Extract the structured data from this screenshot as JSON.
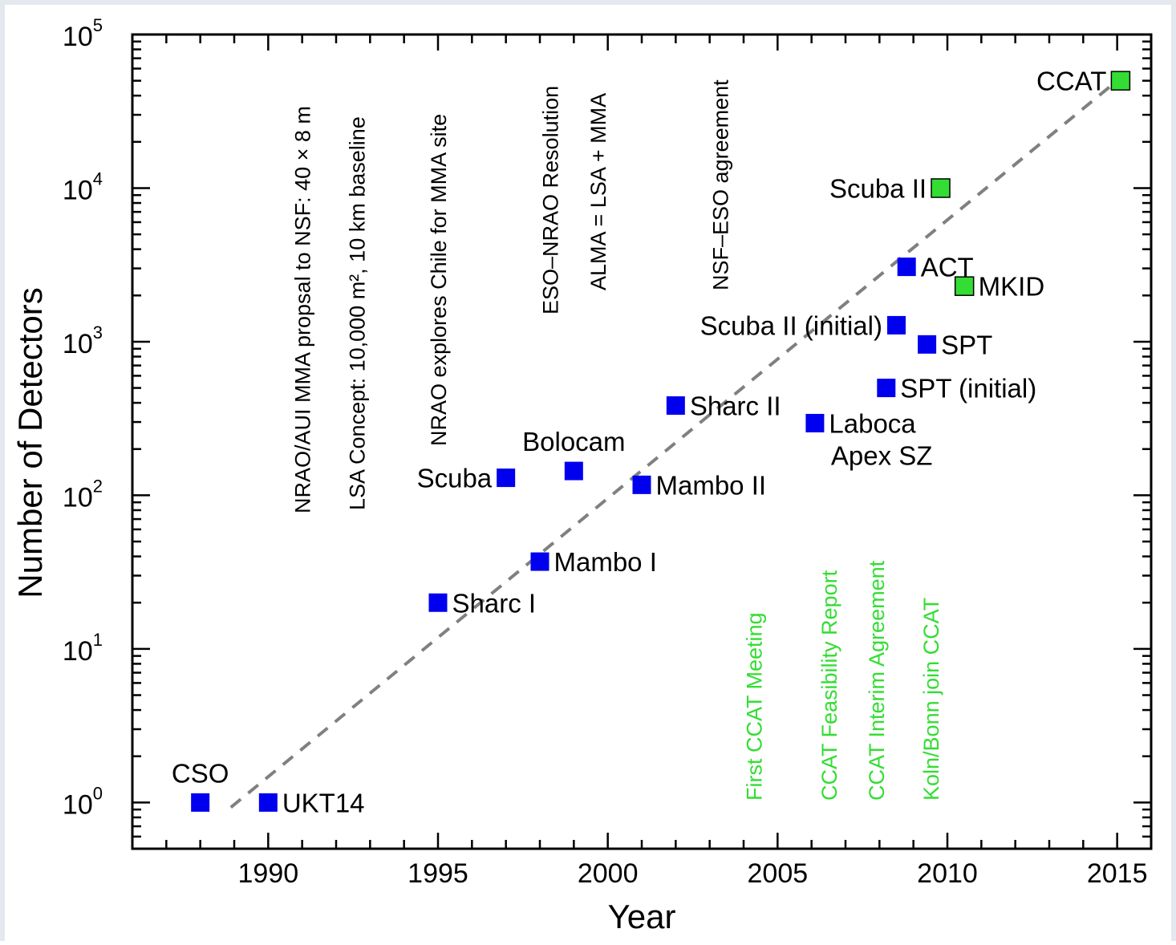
{
  "colors": {
    "existing": "#0000ee",
    "planned": "#33dd33",
    "trend": "#808080",
    "axis": "#000000"
  },
  "chart_data": {
    "type": "scatter",
    "title": "",
    "xlabel": "Year",
    "ylabel": "Number of Detectors",
    "xlim": [
      1986,
      2016
    ],
    "ylim": [
      0.5,
      100000
    ],
    "yscale": "log",
    "xticks": [
      "1990",
      "1995",
      "2000",
      "2005",
      "2010",
      "2015"
    ],
    "ytick_base": "10",
    "ytick_exponents": [
      "0",
      "1",
      "2",
      "3",
      "4",
      "5"
    ],
    "grid": false,
    "legend": "none",
    "points": [
      {
        "label": "CSO",
        "x": 1988,
        "y": 1,
        "status": "existing",
        "label_pos": "above"
      },
      {
        "label": "UKT14",
        "x": 1990,
        "y": 1,
        "status": "existing",
        "label_pos": "right"
      },
      {
        "label": "Sharc I",
        "x": 1995,
        "y": 20,
        "status": "existing",
        "label_pos": "right"
      },
      {
        "label": "Scuba",
        "x": 1997,
        "y": 130,
        "status": "existing",
        "label_pos": "left"
      },
      {
        "label": "Mambo I",
        "x": 1998,
        "y": 37,
        "status": "existing",
        "label_pos": "right"
      },
      {
        "label": "Bolocam",
        "x": 1999,
        "y": 144,
        "status": "existing",
        "label_pos": "above"
      },
      {
        "label": "Mambo II",
        "x": 2001,
        "y": 117,
        "status": "existing",
        "label_pos": "right"
      },
      {
        "label": "Sharc II",
        "x": 2002,
        "y": 384,
        "status": "existing",
        "label_pos": "right"
      },
      {
        "label": "Laboca",
        "x": 2006.1,
        "y": 295,
        "status": "existing",
        "label_pos": "right"
      },
      {
        "label": "SPT (initial)",
        "x": 2008.2,
        "y": 500,
        "status": "existing",
        "label_pos": "right"
      },
      {
        "label": "Scuba II (initial)",
        "x": 2008.5,
        "y": 1280,
        "status": "existing",
        "label_pos": "left"
      },
      {
        "label": "ACT",
        "x": 2008.8,
        "y": 3072,
        "status": "existing",
        "label_pos": "right"
      },
      {
        "label": "SPT",
        "x": 2009.4,
        "y": 960,
        "status": "existing",
        "label_pos": "right"
      },
      {
        "label": "Scuba II",
        "x": 2009.8,
        "y": 10000,
        "status": "planned",
        "label_pos": "left"
      },
      {
        "label": "MKID",
        "x": 2010.5,
        "y": 2300,
        "status": "planned",
        "label_pos": "right"
      },
      {
        "label": "CCAT",
        "x": 2015.1,
        "y": 50000,
        "status": "planned",
        "label_pos": "left"
      }
    ],
    "extra_labels": [
      "Apex SZ"
    ],
    "trend_line": {
      "x": [
        1988.9,
        2015.0
      ],
      "y": [
        0.93,
        50000
      ],
      "style": "dashed"
    },
    "events": [
      {
        "text": "NRAO/AUI MMA propsal to NSF: 40 × 8 m",
        "x": 1991,
        "color": "black",
        "anchor": "bottom"
      },
      {
        "text": "LSA Concept: 10,000 m², 10 km baseline",
        "x": 1992.6,
        "color": "black",
        "anchor": "bottom"
      },
      {
        "text": "NRAO explores Chile for MMA site",
        "x": 1995,
        "color": "black",
        "anchor": "bottom"
      },
      {
        "text": "ESO–NRAO Resolution",
        "x": 1998.3,
        "color": "black",
        "anchor": "bottom"
      },
      {
        "text": "ALMA = LSA + MMA",
        "x": 1999.7,
        "color": "black",
        "anchor": "bottom"
      },
      {
        "text": "NSF–ESO agreement",
        "x": 2003.3,
        "color": "black",
        "anchor": "bottom"
      },
      {
        "text": "First CCAT Meeting",
        "x": 2004.3,
        "color": "green",
        "anchor": "bottom"
      },
      {
        "text": "CCAT Feasibility Report",
        "x": 2006.5,
        "color": "green",
        "anchor": "bottom"
      },
      {
        "text": "CCAT Interim Agreement",
        "x": 2007.9,
        "color": "green",
        "anchor": "bottom"
      },
      {
        "text": "Koln/Bonn join CCAT",
        "x": 2009.5,
        "color": "green",
        "anchor": "bottom"
      }
    ]
  }
}
